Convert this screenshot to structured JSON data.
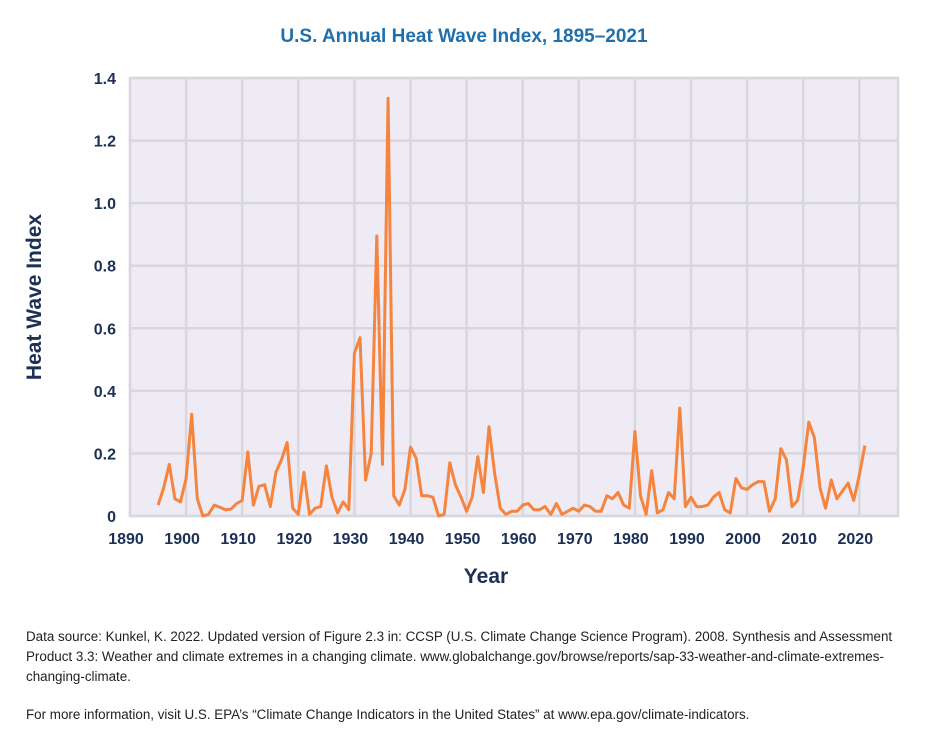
{
  "chart_data": {
    "type": "line",
    "title": "U.S. Annual Heat Wave Index, 1895–2021",
    "xlabel": "Year",
    "ylabel": "Heat Wave Index",
    "xlim": [
      1890,
      2027
    ],
    "ylim": [
      0,
      1.4
    ],
    "xticks": [
      "1890",
      "1900",
      "1910",
      "1920",
      "1930",
      "1940",
      "1950",
      "1960",
      "1970",
      "1980",
      "1990",
      "2000",
      "2010",
      "2020"
    ],
    "yticks": [
      "0",
      "0.2",
      "0.4",
      "0.6",
      "0.8",
      "1.0",
      "1.2",
      "1.4"
    ],
    "grid": true,
    "line_color": "#f5843f",
    "plot_background": "#eeebf4",
    "x_start": 1895,
    "values": [
      0.035,
      0.09,
      0.165,
      0.055,
      0.045,
      0.12,
      0.325,
      0.055,
      0.0,
      0.005,
      0.035,
      0.028,
      0.02,
      0.022,
      0.04,
      0.05,
      0.205,
      0.035,
      0.095,
      0.1,
      0.03,
      0.14,
      0.18,
      0.235,
      0.025,
      0.005,
      0.14,
      0.005,
      0.025,
      0.03,
      0.16,
      0.06,
      0.01,
      0.045,
      0.02,
      0.52,
      0.57,
      0.115,
      0.2,
      0.895,
      0.165,
      1.335,
      0.065,
      0.035,
      0.085,
      0.22,
      0.185,
      0.065,
      0.065,
      0.06,
      0.0,
      0.005,
      0.17,
      0.1,
      0.06,
      0.015,
      0.06,
      0.19,
      0.075,
      0.285,
      0.135,
      0.025,
      0.005,
      0.015,
      0.015,
      0.035,
      0.04,
      0.02,
      0.02,
      0.03,
      0.005,
      0.04,
      0.005,
      0.015,
      0.025,
      0.015,
      0.035,
      0.03,
      0.015,
      0.015,
      0.065,
      0.055,
      0.075,
      0.035,
      0.025,
      0.27,
      0.065,
      0.005,
      0.145,
      0.01,
      0.02,
      0.075,
      0.055,
      0.345,
      0.03,
      0.06,
      0.03,
      0.03,
      0.035,
      0.06,
      0.075,
      0.02,
      0.01,
      0.12,
      0.09,
      0.085,
      0.1,
      0.11,
      0.11,
      0.015,
      0.055,
      0.215,
      0.18,
      0.03,
      0.05,
      0.155,
      0.3,
      0.25,
      0.09,
      0.025,
      0.115,
      0.055,
      0.08,
      0.105,
      0.05,
      0.13,
      0.225
    ]
  },
  "notes": {
    "source": "Data source: Kunkel, K. 2022. Updated version of Figure 2.3 in: CCSP (U.S. Climate Change Science Program). 2008. Synthesis and Assessment Product 3.3: Weather and climate extremes in a changing climate. www.globalchange.gov/browse/reports/sap-33-weather-and-climate-extremes-changing-climate.",
    "more_info": "For more information, visit U.S. EPA’s “Climate Change Indicators in the United States” at www.epa.gov/climate-indicators."
  }
}
